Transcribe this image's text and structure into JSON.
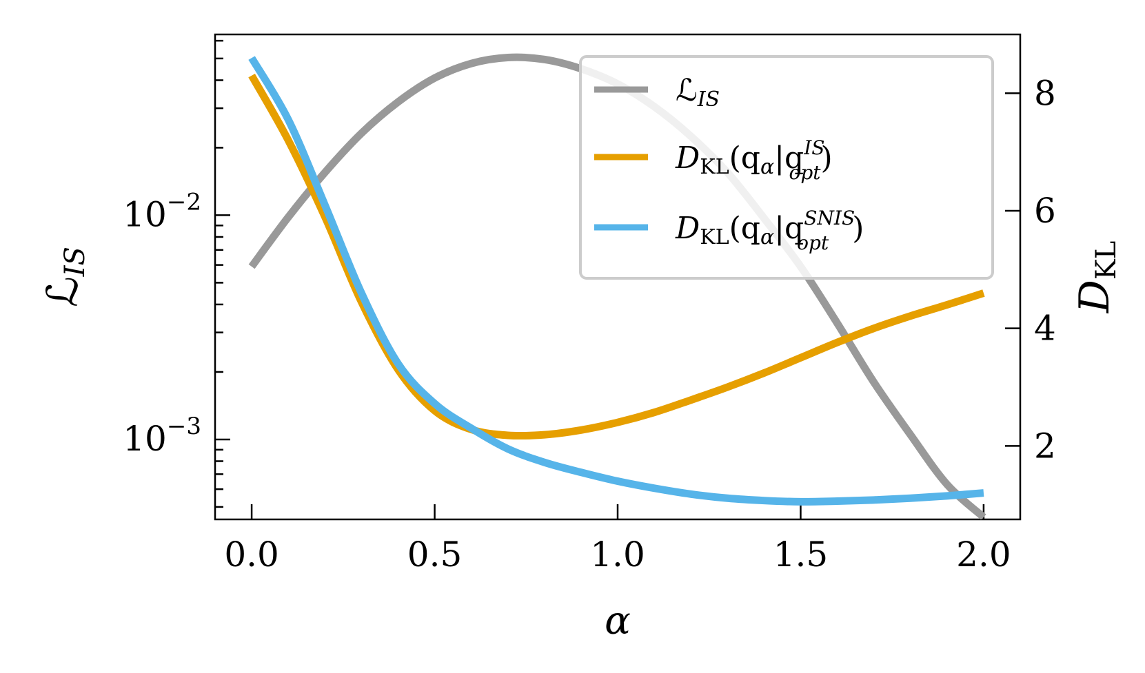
{
  "chart_data": {
    "type": "line",
    "xlabel": "α",
    "x_ticks": [
      "0.0",
      "0.5",
      "1.0",
      "1.5",
      "2.0"
    ],
    "xlim": [
      -0.1,
      2.1
    ],
    "left_axis": {
      "label_main": "ℒ",
      "label_sub": "IS",
      "scale": "log",
      "ylim": [
        0.00044,
        0.064
      ],
      "ticks": [
        {
          "value": 0.01,
          "base": "10",
          "exp": "−2"
        },
        {
          "value": 0.001,
          "base": "10",
          "exp": "−3"
        }
      ]
    },
    "right_axis": {
      "label_main": "D",
      "label_sub": "KL",
      "scale": "linear",
      "ylim": [
        0.75,
        9.0
      ],
      "ticks": [
        "2",
        "4",
        "6",
        "8"
      ]
    },
    "series": [
      {
        "name_main": "ℒ",
        "name_sub": "IS",
        "axis": "left",
        "color": "#999999",
        "x": [
          0.0,
          0.1,
          0.2,
          0.3,
          0.4,
          0.5,
          0.6,
          0.7,
          0.8,
          0.9,
          1.0,
          1.1,
          1.2,
          1.3,
          1.4,
          1.5,
          1.6,
          1.7,
          1.8,
          1.9,
          2.0
        ],
        "y": [
          0.0059,
          0.0098,
          0.0155,
          0.0232,
          0.032,
          0.0409,
          0.0475,
          0.0505,
          0.0495,
          0.045,
          0.0385,
          0.0305,
          0.0225,
          0.0155,
          0.0097,
          0.0059,
          0.0033,
          0.0018,
          0.00105,
          0.00063,
          0.00045
        ]
      },
      {
        "name_main": "D",
        "name_sub": "KL",
        "name_rest": "(q",
        "name_alpha": "α",
        "name_bar": "|q",
        "name_sup": "IS",
        "name_sub2": "opt",
        "name_close": ")",
        "axis": "right",
        "color": "#E69F00",
        "x": [
          0.0,
          0.1,
          0.2,
          0.3,
          0.4,
          0.5,
          0.6,
          0.7,
          0.8,
          0.9,
          1.0,
          1.1,
          1.2,
          1.3,
          1.4,
          1.5,
          1.6,
          1.7,
          1.8,
          1.9,
          2.0
        ],
        "y": [
          8.3,
          7.2,
          5.9,
          4.45,
          3.3,
          2.6,
          2.28,
          2.18,
          2.19,
          2.27,
          2.4,
          2.57,
          2.78,
          3.0,
          3.24,
          3.5,
          3.76,
          4.0,
          4.21,
          4.4,
          4.6
        ]
      },
      {
        "name_main": "D",
        "name_sub": "KL",
        "name_rest": "(q",
        "name_alpha": "α",
        "name_bar": "|q",
        "name_sup": "SNIS",
        "name_sub2": "opt",
        "name_close": ")",
        "axis": "right",
        "color": "#56B4E9",
        "x": [
          0.0,
          0.1,
          0.2,
          0.3,
          0.4,
          0.5,
          0.6,
          0.7,
          0.8,
          0.9,
          1.0,
          1.1,
          1.2,
          1.3,
          1.4,
          1.5,
          1.6,
          1.7,
          1.8,
          1.9,
          2.0
        ],
        "y": [
          8.6,
          7.55,
          6.1,
          4.6,
          3.4,
          2.72,
          2.3,
          1.95,
          1.72,
          1.55,
          1.4,
          1.28,
          1.18,
          1.11,
          1.07,
          1.05,
          1.06,
          1.08,
          1.11,
          1.15,
          1.2
        ]
      }
    ],
    "legend": {
      "position": "top-right"
    }
  }
}
